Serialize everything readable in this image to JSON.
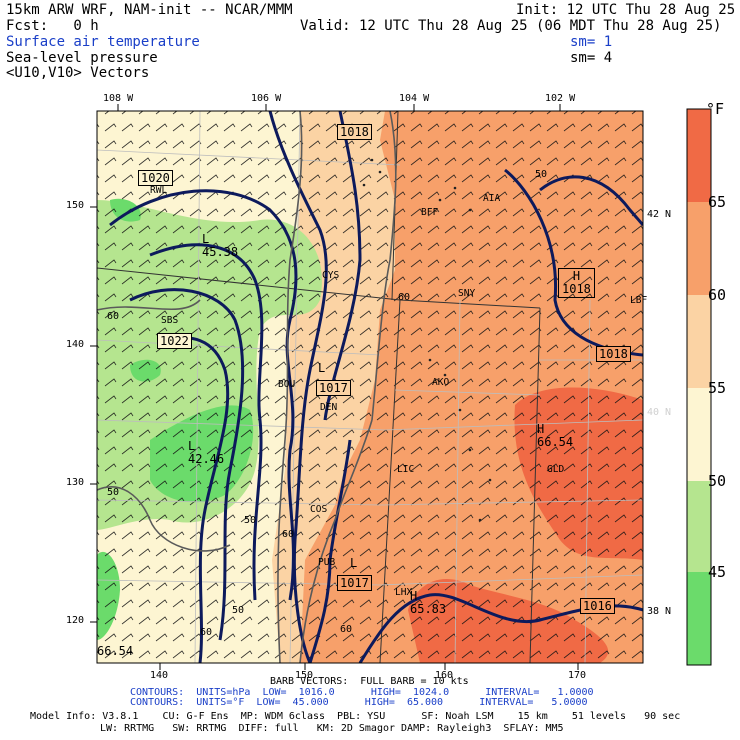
{
  "header": {
    "model": "15km ARW WRF, NAM-init -- NCAR/MMM",
    "init": "Init: 12 UTC Thu 28 Aug 25",
    "fcst": "Fcst:   0 h",
    "valid": "Valid: 12 UTC Thu 28 Aug 25 (06 MDT Thu 28 Aug 25)",
    "fields": [
      {
        "label": "Surface air temperature",
        "sm": "sm= 1",
        "color": "#1a3fc8"
      },
      {
        "label": "Sea-level pressure",
        "sm": "sm= 4",
        "color": "#000000"
      },
      {
        "label": "<U10,V10> Vectors",
        "sm": "",
        "color": "#000000"
      }
    ]
  },
  "axes": {
    "top_lon": [
      "108 W",
      "106 W",
      "104 W",
      "102 W"
    ],
    "right_lat": [
      "42 N",
      "40 N",
      "38 N"
    ],
    "left_ticks": [
      "150",
      "140",
      "130",
      "120"
    ],
    "bottom_ticks": [
      "140",
      "150",
      "160",
      "170"
    ]
  },
  "colorbar": {
    "unit": "°F",
    "labels": [
      "65",
      "60",
      "55",
      "50",
      "45"
    ],
    "colors": [
      "#f06a45",
      "#f7a06a",
      "#fbd3a4",
      "#fdf5d2",
      "#b5e58f",
      "#6bdb6b"
    ]
  },
  "contours": {
    "pressure_labels": [
      "1018",
      "1020",
      "1022",
      "1017",
      "1018",
      "1017",
      "1016"
    ],
    "temp_labels": [
      "50",
      "60",
      "60",
      "50",
      "50",
      "60",
      "60",
      "60",
      "50"
    ],
    "highs_lows": [
      {
        "sym": "H",
        "value": "1018"
      },
      {
        "sym": "L",
        "value": "1017"
      },
      {
        "sym": "L",
        "value": "1017"
      }
    ],
    "extremes": [
      {
        "sym": "H",
        "value": "66.54"
      },
      {
        "sym": "H",
        "value": "65.83"
      },
      {
        "sym": "L",
        "value": "42.46"
      },
      {
        "sym": "L",
        "value": "45.38"
      },
      {
        "sym": "",
        "value": "66.54"
      }
    ]
  },
  "stations": [
    "RWL",
    "SBS",
    "CYS",
    "BFF",
    "AIA",
    "SNY",
    "LBF",
    "BOU",
    "DEN",
    "AKO",
    "LIC",
    "GLD",
    "COS",
    "PUB",
    "LHX"
  ],
  "footer": {
    "barb": "BARB VECTORS:  FULL BARB = 10 kts",
    "contours1": "CONTOURS:  UNITS=hPa  LOW=  1016.0      HIGH=  1024.0      INTERVAL=   1.0000",
    "contours2": "CONTOURS:  UNITS=°F  LOW=  45.000      HIGH=  65.000      INTERVAL=   5.0000",
    "model_info1": "Model Info: V3.8.1    CU: G-F Ens  MP: WDM 6class  PBL: YSU      SF: Noah LSM    15 km    51 levels   90 sec",
    "model_info2": "LW: RRTMG   SW: RRTMG  DIFF: full   KM: 2D Smagor DAMP: Rayleigh3  SFLAY: MM5"
  }
}
